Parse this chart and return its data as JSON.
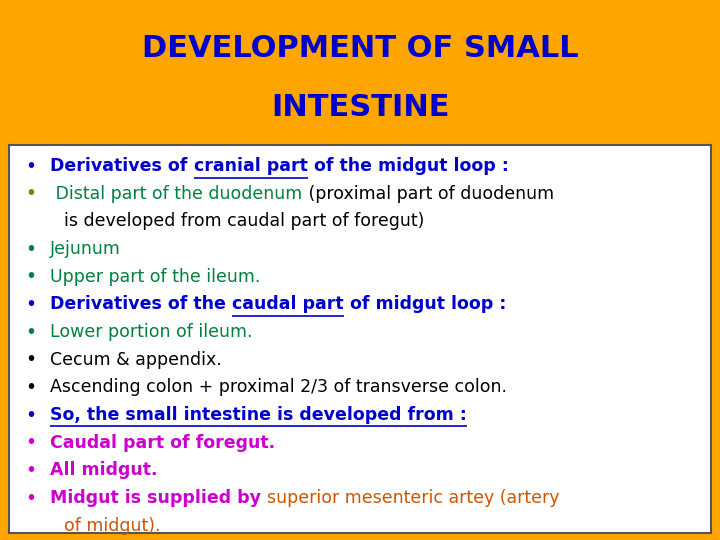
{
  "title_line1": "DEVELOPMENT OF SMALL",
  "title_line2": "INTESTINE",
  "title_color": "#0000CC",
  "title_bg_color": "#FFA500",
  "title_fontsize": 22,
  "body_bg_color": "#FFFFFF",
  "border_color": "#555555",
  "bullet_lines": [
    {
      "bullet": "•",
      "bullet_color": "#0000CC",
      "segments": [
        {
          "text": "Derivatives of ",
          "color": "#0000CC",
          "bold": true,
          "underline": false
        },
        {
          "text": "cranial part",
          "color": "#0000CC",
          "bold": true,
          "underline": true
        },
        {
          "text": " of the midgut loop :",
          "color": "#0000CC",
          "bold": true,
          "underline": false
        }
      ]
    },
    {
      "bullet": "•",
      "bullet_color": "#808000",
      "segments": [
        {
          "text": " Distal part of the duodenum",
          "color": "#008040",
          "bold": false,
          "underline": false
        },
        {
          "text": " (proximal part of duodenum",
          "color": "#000000",
          "bold": false,
          "underline": false
        }
      ]
    },
    {
      "bullet": "",
      "bullet_color": "#000000",
      "continuation": true,
      "segments": [
        {
          "text": "is developed from caudal part of foregut)",
          "color": "#000000",
          "bold": false,
          "underline": false
        }
      ]
    },
    {
      "bullet": "•",
      "bullet_color": "#008040",
      "segments": [
        {
          "text": "Jejunum",
          "color": "#008040",
          "bold": false,
          "underline": false
        }
      ]
    },
    {
      "bullet": "•",
      "bullet_color": "#008040",
      "segments": [
        {
          "text": "Upper part of the ileum.",
          "color": "#008040",
          "bold": false,
          "underline": false
        }
      ]
    },
    {
      "bullet": "•",
      "bullet_color": "#0000CC",
      "segments": [
        {
          "text": "Derivatives of the ",
          "color": "#0000CC",
          "bold": true,
          "underline": false
        },
        {
          "text": "caudal part",
          "color": "#0000CC",
          "bold": true,
          "underline": true
        },
        {
          "text": " of midgut loop :",
          "color": "#0000CC",
          "bold": true,
          "underline": false
        }
      ]
    },
    {
      "bullet": "•",
      "bullet_color": "#008040",
      "segments": [
        {
          "text": "Lower portion of ileum.",
          "color": "#008040",
          "bold": false,
          "underline": false
        }
      ]
    },
    {
      "bullet": "•",
      "bullet_color": "#000000",
      "segments": [
        {
          "text": "Cecum & appendix.",
          "color": "#000000",
          "bold": false,
          "underline": false
        }
      ]
    },
    {
      "bullet": "•",
      "bullet_color": "#000000",
      "segments": [
        {
          "text": "Ascending colon + proximal 2/3 of transverse colon.",
          "color": "#000000",
          "bold": false,
          "underline": false
        }
      ]
    },
    {
      "bullet": "•",
      "bullet_color": "#0000CC",
      "segments": [
        {
          "text": "So, the small intestine is developed from :",
          "color": "#0000CC",
          "bold": true,
          "underline": true
        }
      ]
    },
    {
      "bullet": "•",
      "bullet_color": "#CC00CC",
      "segments": [
        {
          "text": "Caudal part of foregut.",
          "color": "#CC00CC",
          "bold": true,
          "underline": false
        }
      ]
    },
    {
      "bullet": "•",
      "bullet_color": "#CC00CC",
      "segments": [
        {
          "text": "All midgut.",
          "color": "#CC00CC",
          "bold": true,
          "underline": false
        }
      ]
    },
    {
      "bullet": "•",
      "bullet_color": "#CC00CC",
      "segments": [
        {
          "text": "Midgut is supplied by ",
          "color": "#CC00CC",
          "bold": true,
          "underline": false
        },
        {
          "text": "superior mesenteric artey (artery",
          "color": "#CC5500",
          "bold": false,
          "underline": false
        }
      ]
    },
    {
      "bullet": "",
      "bullet_color": "#000000",
      "continuation": true,
      "segments": [
        {
          "text": "of midgut).",
          "color": "#CC5500",
          "bold": false,
          "underline": false
        }
      ]
    }
  ],
  "body_fontsize": 12.5,
  "figsize": [
    7.2,
    5.4
  ],
  "dpi": 100
}
